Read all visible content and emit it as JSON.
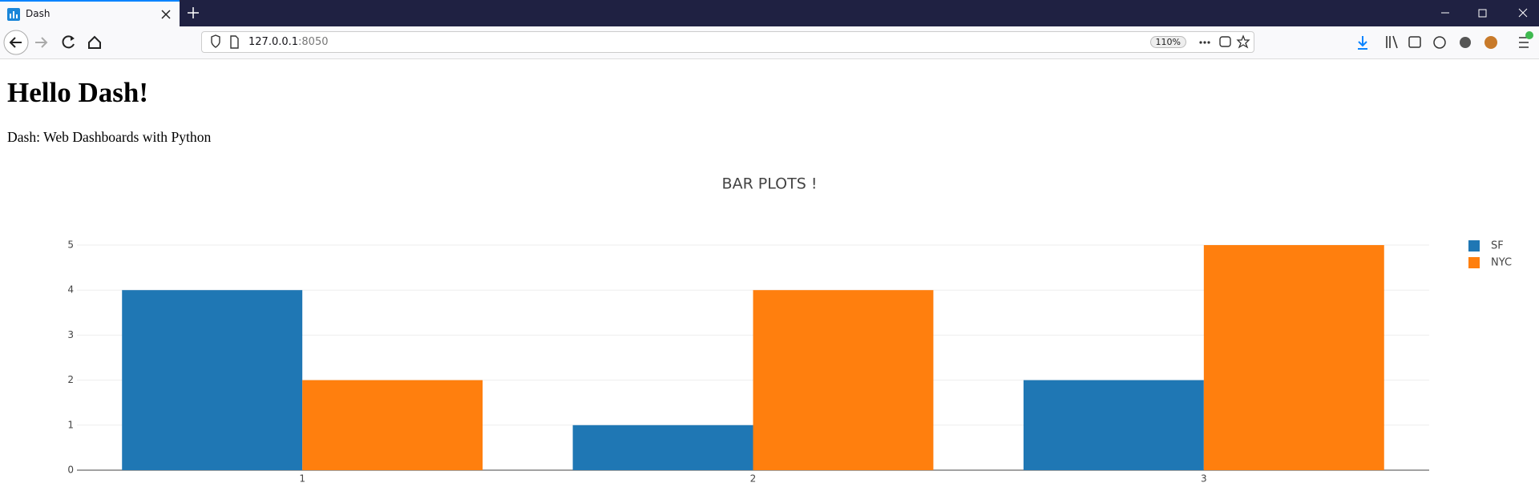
{
  "browser": {
    "tab_title": "Dash",
    "url_host": "127.0.0.1",
    "url_port": ":8050",
    "zoom": "110%"
  },
  "page": {
    "heading": "Hello Dash!",
    "paragraph": "Dash: Web Dashboards with Python"
  },
  "chart_data": {
    "type": "bar",
    "title": "BAR PLOTS !",
    "x": [
      1,
      2,
      3
    ],
    "xlim": [
      0.5,
      3.5
    ],
    "xticks": [
      1,
      2,
      3
    ],
    "series": [
      {
        "name": "SF",
        "color": "#1f77b4",
        "values": [
          4,
          1,
          2
        ]
      },
      {
        "name": "NYC",
        "color": "#ff7f0e",
        "values": [
          2,
          4,
          5
        ]
      }
    ],
    "ylim": [
      0,
      5
    ],
    "yticks": [
      0,
      1,
      2,
      3,
      4,
      5
    ],
    "grid": true,
    "legend": "right"
  }
}
